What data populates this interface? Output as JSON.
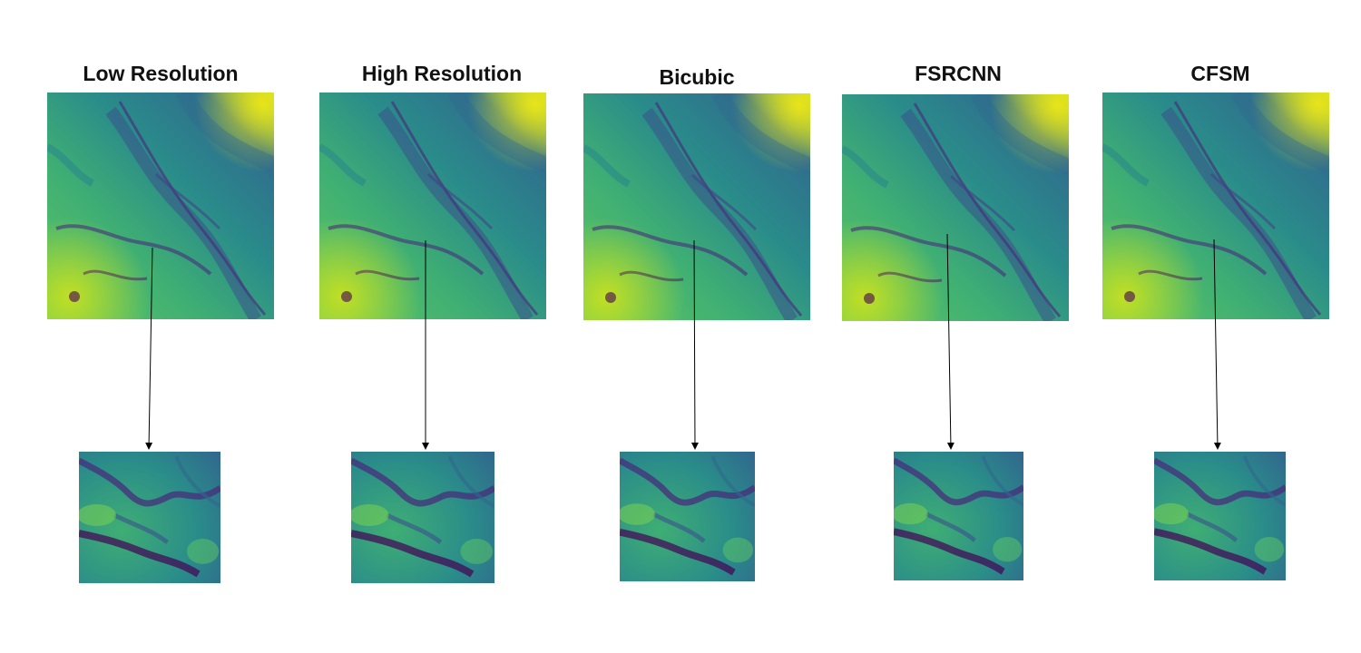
{
  "panels": [
    {
      "title": "Low Resolution"
    },
    {
      "title": "High Resolution"
    },
    {
      "title": "Bicubic"
    },
    {
      "title": "FSRCNN"
    },
    {
      "title": "CFSM"
    }
  ],
  "colormap": {
    "dark": "#440154",
    "mid1": "#3b528b",
    "mid2": "#21908d",
    "mid3": "#5dc863",
    "light": "#fde725"
  }
}
